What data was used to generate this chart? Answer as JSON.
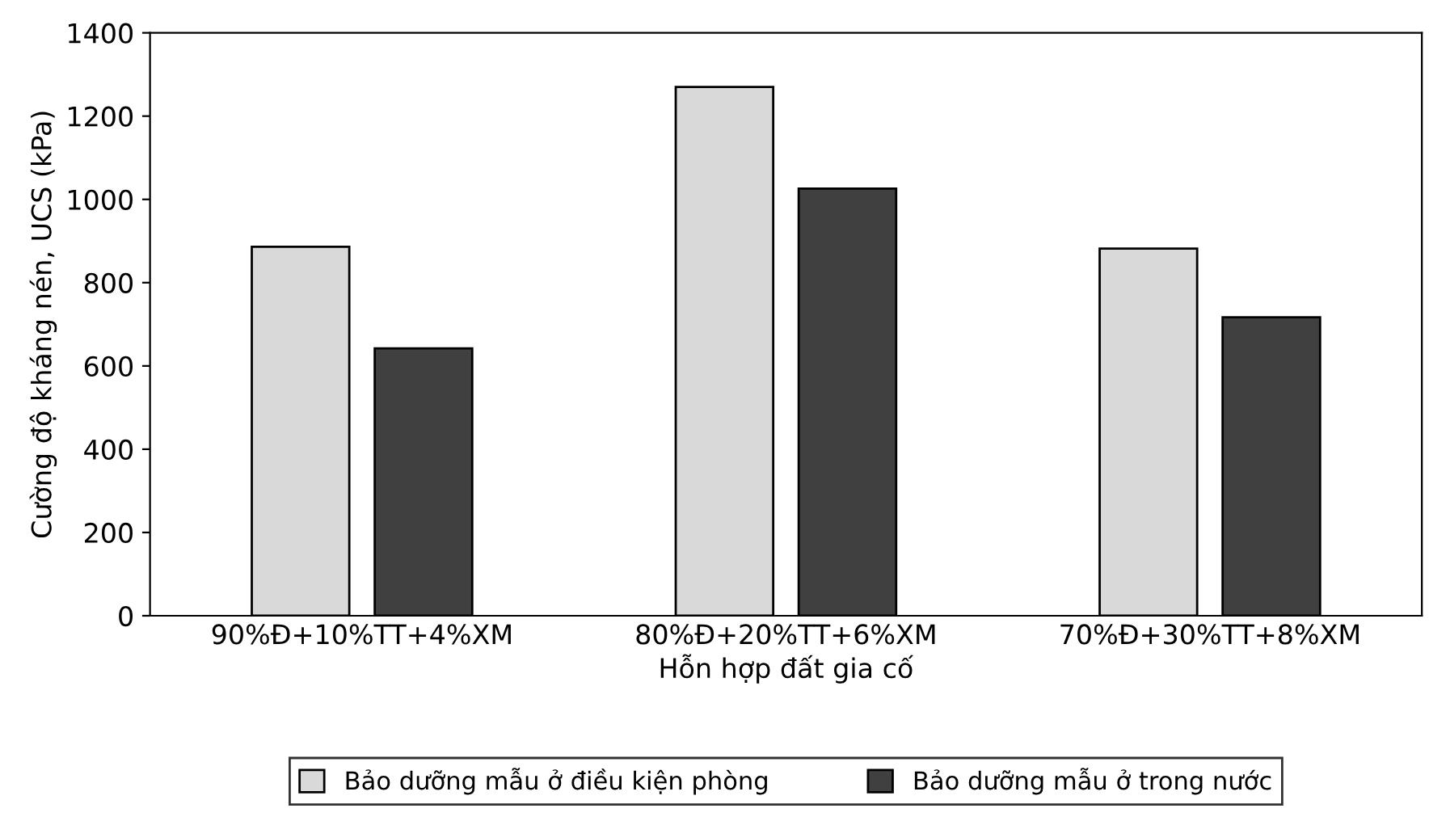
{
  "chart_data": {
    "type": "bar",
    "xlabel": "Hỗn hợp đất gia cố",
    "ylabel": "Cường độ kháng nén, UCS (kPa)",
    "categories": [
      "90%Đ+10%TT+4%XM",
      "80%Đ+20%TT+6%XM",
      "70%Đ+30%TT+8%XM"
    ],
    "series": [
      {
        "name": "Bảo dưỡng mẫu ở điều kiện phòng",
        "color": "#d9d9d9",
        "values": [
          886,
          1270,
          882
        ]
      },
      {
        "name": "Bảo dưỡng mẫu ở trong nước",
        "color": "#404040",
        "values": [
          642,
          1026,
          717
        ]
      }
    ],
    "ylim": [
      0,
      1400
    ],
    "yticks": [
      0,
      200,
      400,
      600,
      800,
      1000,
      1200,
      1400
    ],
    "grid": false,
    "legend": "bottom"
  }
}
